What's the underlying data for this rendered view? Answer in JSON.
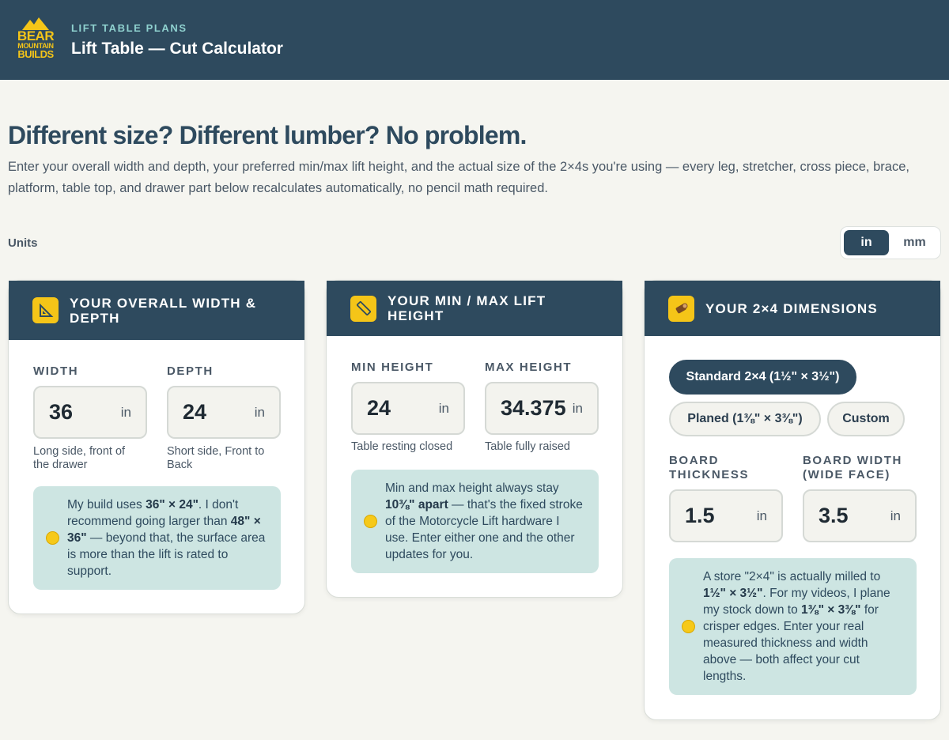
{
  "header": {
    "logo": {
      "line1": "BEAR",
      "line2": "MOUNTAIN",
      "line3": "BUILDS"
    },
    "eyebrow": "LIFT TABLE PLANS",
    "title": "Lift Table — Cut Calculator"
  },
  "intro": {
    "heading": "Different size? Different lumber? No problem.",
    "body": "Enter your overall width and depth, your preferred min/max lift height, and the actual size of the 2×4s you're using — every leg, stretcher, cross piece, brace, platform, table top, and drawer part below recalculates automatically, no pencil math required."
  },
  "units": {
    "label": "Units",
    "options": [
      "in",
      "mm"
    ],
    "selected": "in"
  },
  "cards": {
    "size": {
      "icon": "set-square-icon",
      "title": "YOUR OVERALL WIDTH & DEPTH",
      "width": {
        "label": "WIDTH",
        "value": "36",
        "unit": "in",
        "hint": "Long side, front of the drawer"
      },
      "depth": {
        "label": "DEPTH",
        "value": "24",
        "unit": "in",
        "hint": "Short side, Front to Back"
      },
      "note": {
        "p1": "My build uses ",
        "b1": "36\" × 24\"",
        "p2": ". I don't recommend going larger than ",
        "b2": "48\" × 36\"",
        "p3": " — beyond that, the surface area is more than the lift is rated to support."
      }
    },
    "height": {
      "icon": "ruler-icon",
      "title": "YOUR MIN / MAX LIFT HEIGHT",
      "min": {
        "label": "MIN HEIGHT",
        "value": "24",
        "unit": "in",
        "hint": "Table resting closed"
      },
      "max": {
        "label": "MAX HEIGHT",
        "value": "34.375",
        "unit": "in",
        "hint": "Table fully raised"
      },
      "note": {
        "p1": "Min and max height always stay ",
        "b1": "10⅜\" apart",
        "p2": " — that's the fixed stroke of the Motorcycle Lift hardware I use. Enter either one and the other updates for you."
      }
    },
    "lumber": {
      "icon": "wood-log-icon",
      "title": "YOUR 2×4 DIMENSIONS",
      "presets": [
        "Standard 2×4 (1½\" × 3½\")",
        "Planed (1⅜\" × 3⅜\")",
        "Custom"
      ],
      "selected_preset": "Standard 2×4 (1½\" × 3½\")",
      "thickness": {
        "label": "BOARD THICKNESS",
        "value": "1.5",
        "unit": "in"
      },
      "board_width": {
        "label": "BOARD WIDTH (WIDE FACE)",
        "value": "3.5",
        "unit": "in"
      },
      "note": {
        "p1": "A store \"2×4\" is actually milled to ",
        "b1": "1½\" × 3½\"",
        "p2": ". For my videos, I plane my stock down to ",
        "b2": "1⅜\" × 3⅜\"",
        "p3": " for crisper edges. Enter your real measured thickness and width above — both affect your cut lengths."
      }
    }
  },
  "colors": {
    "header_bg": "#2e4a5e",
    "accent_yellow": "#f5c518",
    "note_bg": "#cde5e2",
    "page_bg": "#f5f5f0"
  }
}
